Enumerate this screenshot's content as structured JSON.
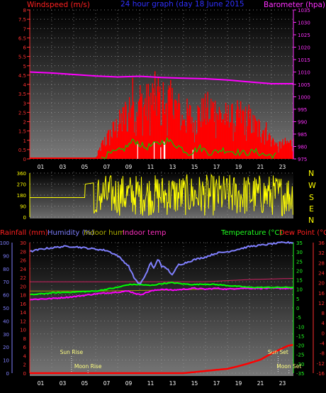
{
  "header": {
    "left_label": "Windspeed (m/s)",
    "center_label": "24 hour graph (day  18 June 2015",
    "right_label": "Barometer (hpa)"
  },
  "bottom_header": {
    "rainfall_label": "Rainfall (mm)",
    "humidity_label": "Humidity (%)",
    "indoor_hum_label": "Indoor hum",
    "indoor_temp_label": "Indoor temp",
    "temperature_label": "Temperature (°C)",
    "dewpoint_label": "Dew Point (°C)"
  },
  "compass": [
    "N",
    "W",
    "S",
    "E",
    "N"
  ],
  "events": {
    "sun_rise": "Sun Rise",
    "moon_rise": "Moon Rise",
    "sun_set": "Sun Set",
    "moon_set": "Moon Set"
  },
  "colors": {
    "wind": "#ff0000",
    "gust": "#ffffff",
    "avg_wind": "#00cc00",
    "barometer": "#ff00ff",
    "wind_dir": "#ffff00",
    "humidity": "#8080ff",
    "temperature": "#00ff00",
    "indoor_temp": "#ff00ff",
    "dewpoint": "#ff0000",
    "rain": "#ff0000",
    "indoor_hum": "#a0a000",
    "indoor_t2": "#cc2060"
  },
  "chart_data": [
    {
      "type": "bar",
      "title": "24 hour graph (day  18 June 2015",
      "x_ticks": [
        "01",
        "03",
        "05",
        "07",
        "09",
        "11",
        "13",
        "15",
        "17",
        "19",
        "21",
        "23"
      ],
      "ylabel": "Windspeed (m/s)",
      "ylim": [
        0,
        8
      ],
      "y_ticks": [
        "0",
        "0.5",
        "1",
        "1.5",
        "2",
        "2.5",
        "3",
        "3.5",
        "4",
        "4.5",
        "5",
        "5.5",
        "6",
        "6.5",
        "7",
        "7.5",
        "8"
      ],
      "y2label": "Barometer (hpa)",
      "y2lim": [
        975,
        1035
      ],
      "y2_ticks": [
        "975",
        "980",
        "985",
        "990",
        "995",
        "1000",
        "1005",
        "1010",
        "1015",
        "1020",
        "1025",
        "1030",
        "1035"
      ],
      "wind_envelope": [
        [
          0,
          0
        ],
        [
          6,
          0
        ],
        [
          6.5,
          1
        ],
        [
          7.5,
          2
        ],
        [
          8.5,
          3
        ],
        [
          9.5,
          4.7
        ],
        [
          10.5,
          4
        ],
        [
          11.5,
          4.8
        ],
        [
          12.5,
          4.5
        ],
        [
          13.5,
          3.7
        ],
        [
          14.5,
          3.2
        ],
        [
          15.5,
          3.3
        ],
        [
          16.5,
          3.8
        ],
        [
          17.5,
          3.2
        ],
        [
          18.5,
          3
        ],
        [
          19.5,
          3.4
        ],
        [
          20.5,
          2.5
        ],
        [
          21.5,
          2.1
        ],
        [
          22.5,
          1
        ],
        [
          23.5,
          1.2
        ]
      ],
      "avg_wind": [
        [
          6.5,
          0.1
        ],
        [
          7.5,
          0.3
        ],
        [
          8.5,
          0.5
        ],
        [
          9.5,
          1.0
        ],
        [
          10.5,
          0.6
        ],
        [
          11.5,
          0.8
        ],
        [
          12.5,
          1.0
        ],
        [
          13.5,
          0.7
        ],
        [
          14.5,
          0.3
        ],
        [
          15.5,
          0.6
        ],
        [
          16.5,
          0.3
        ],
        [
          17.5,
          0.5
        ],
        [
          18.5,
          0.4
        ],
        [
          19.5,
          0.3
        ],
        [
          20.5,
          0.4
        ],
        [
          21.5,
          0.2
        ],
        [
          22.5,
          0.2
        ]
      ],
      "barometer": [
        [
          0,
          1010
        ],
        [
          2,
          1009.6
        ],
        [
          4,
          1009.0
        ],
        [
          6,
          1008.4
        ],
        [
          8,
          1008.0
        ],
        [
          10,
          1008.3
        ],
        [
          12,
          1007.8
        ],
        [
          14,
          1007.5
        ],
        [
          16,
          1007.3
        ],
        [
          18,
          1006.8
        ],
        [
          20,
          1006.0
        ],
        [
          22,
          1005.3
        ],
        [
          24,
          1005.3
        ]
      ]
    },
    {
      "type": "line",
      "ylabel": "Wind direction",
      "ylim": [
        0,
        360
      ],
      "y_ticks": [
        "0",
        "90",
        "180",
        "270",
        "360"
      ],
      "wind_dir_seed": [
        [
          0,
          160
        ],
        [
          5,
          160
        ],
        [
          5.2,
          280
        ],
        [
          5.8,
          290
        ],
        [
          6.2,
          70
        ],
        [
          24,
          200
        ]
      ]
    },
    {
      "type": "line",
      "x_ticks": [
        "01",
        "03",
        "05",
        "07",
        "09",
        "11",
        "13",
        "15",
        "17",
        "19",
        "21",
        "23"
      ],
      "y_left1_label": "Humidity (%)",
      "y_left1_ticks": [
        "0",
        "10",
        "20",
        "30",
        "40",
        "50",
        "60",
        "70",
        "80",
        "90",
        "100"
      ],
      "y_left2_label": "Rainfall (mm)",
      "y_left2_ticks": [
        "0",
        "2",
        "4",
        "6",
        "8",
        "10",
        "12",
        "14",
        "16",
        "18",
        "20",
        "22",
        "24",
        "26",
        "28",
        "30"
      ],
      "y_right1_label": "Temperature (°C)",
      "y_right1_ticks": [
        "-35",
        "-30",
        "-25",
        "-20",
        "-15",
        "-10",
        "-5",
        "0",
        "5",
        "10",
        "15",
        "20",
        "25",
        "30",
        "35"
      ],
      "y_right2_label": "Dew Point (°C)",
      "y_right2_ticks": [
        "-16",
        "-12",
        "-8",
        "-4",
        "0",
        "4",
        "8",
        "12",
        "16",
        "20",
        "24",
        "28",
        "32",
        "36"
      ],
      "humidity": [
        [
          0,
          93
        ],
        [
          1,
          95
        ],
        [
          2,
          96
        ],
        [
          3,
          97
        ],
        [
          4,
          97
        ],
        [
          5,
          96
        ],
        [
          6,
          95
        ],
        [
          7,
          94
        ],
        [
          8,
          90
        ],
        [
          9,
          82
        ],
        [
          9.5,
          73
        ],
        [
          10,
          68
        ],
        [
          10.5,
          74
        ],
        [
          11,
          85
        ],
        [
          11.3,
          80
        ],
        [
          11.7,
          88
        ],
        [
          12,
          82
        ],
        [
          12.5,
          80
        ],
        [
          13,
          75
        ],
        [
          13.5,
          83
        ],
        [
          14,
          84
        ],
        [
          15,
          87
        ],
        [
          16,
          89
        ],
        [
          17,
          92
        ],
        [
          18,
          93
        ],
        [
          19,
          95
        ],
        [
          20,
          97
        ],
        [
          21,
          98
        ],
        [
          22,
          99
        ],
        [
          23,
          100
        ],
        [
          24,
          100
        ]
      ],
      "temperature": [
        [
          0,
          7
        ],
        [
          2,
          8
        ],
        [
          4,
          8.5
        ],
        [
          6,
          9
        ],
        [
          8,
          11
        ],
        [
          9,
          12.5
        ],
        [
          10,
          12.5
        ],
        [
          11,
          12
        ],
        [
          12,
          13
        ],
        [
          13,
          13.5
        ],
        [
          14,
          12.8
        ],
        [
          15,
          12.5
        ],
        [
          16,
          12.8
        ],
        [
          17,
          12.5
        ],
        [
          18,
          12
        ],
        [
          19,
          11.5
        ],
        [
          20,
          11
        ],
        [
          22,
          11
        ],
        [
          24,
          11
        ]
      ],
      "indoor_temp": [
        [
          0,
          4.5
        ],
        [
          2,
          5
        ],
        [
          4,
          6
        ],
        [
          6,
          7.5
        ],
        [
          8,
          8.5
        ],
        [
          9,
          9
        ],
        [
          10,
          7
        ],
        [
          11,
          9
        ],
        [
          12,
          10
        ],
        [
          13,
          9.5
        ],
        [
          14,
          10
        ],
        [
          15,
          10.5
        ],
        [
          16,
          10
        ],
        [
          17,
          10.5
        ],
        [
          18,
          10
        ],
        [
          19,
          10.5
        ],
        [
          20,
          10.5
        ],
        [
          24,
          10.5
        ]
      ],
      "dew_point_line": [
        [
          0,
          14
        ],
        [
          6,
          14
        ],
        [
          10,
          14
        ],
        [
          16,
          14
        ],
        [
          20,
          15.2
        ],
        [
          24,
          15.8
        ]
      ],
      "indoor_hum_line": [
        [
          0,
          9
        ],
        [
          6,
          9
        ],
        [
          12,
          9.5
        ],
        [
          18,
          10.3
        ],
        [
          24,
          11
        ]
      ],
      "rainfall": [
        [
          0,
          0
        ],
        [
          14,
          0
        ],
        [
          16,
          0.5
        ],
        [
          18,
          1.0
        ],
        [
          19,
          1.6
        ],
        [
          20,
          2.3
        ],
        [
          21,
          3.1
        ],
        [
          22,
          4.5
        ],
        [
          23,
          5.7
        ],
        [
          23.5,
          6.3
        ],
        [
          24,
          6.5
        ]
      ],
      "sun_rise_hour": 3.8,
      "moon_rise_hour": 5.3,
      "sun_set_hour": 22.6,
      "moon_set_hour": 23.6
    }
  ]
}
